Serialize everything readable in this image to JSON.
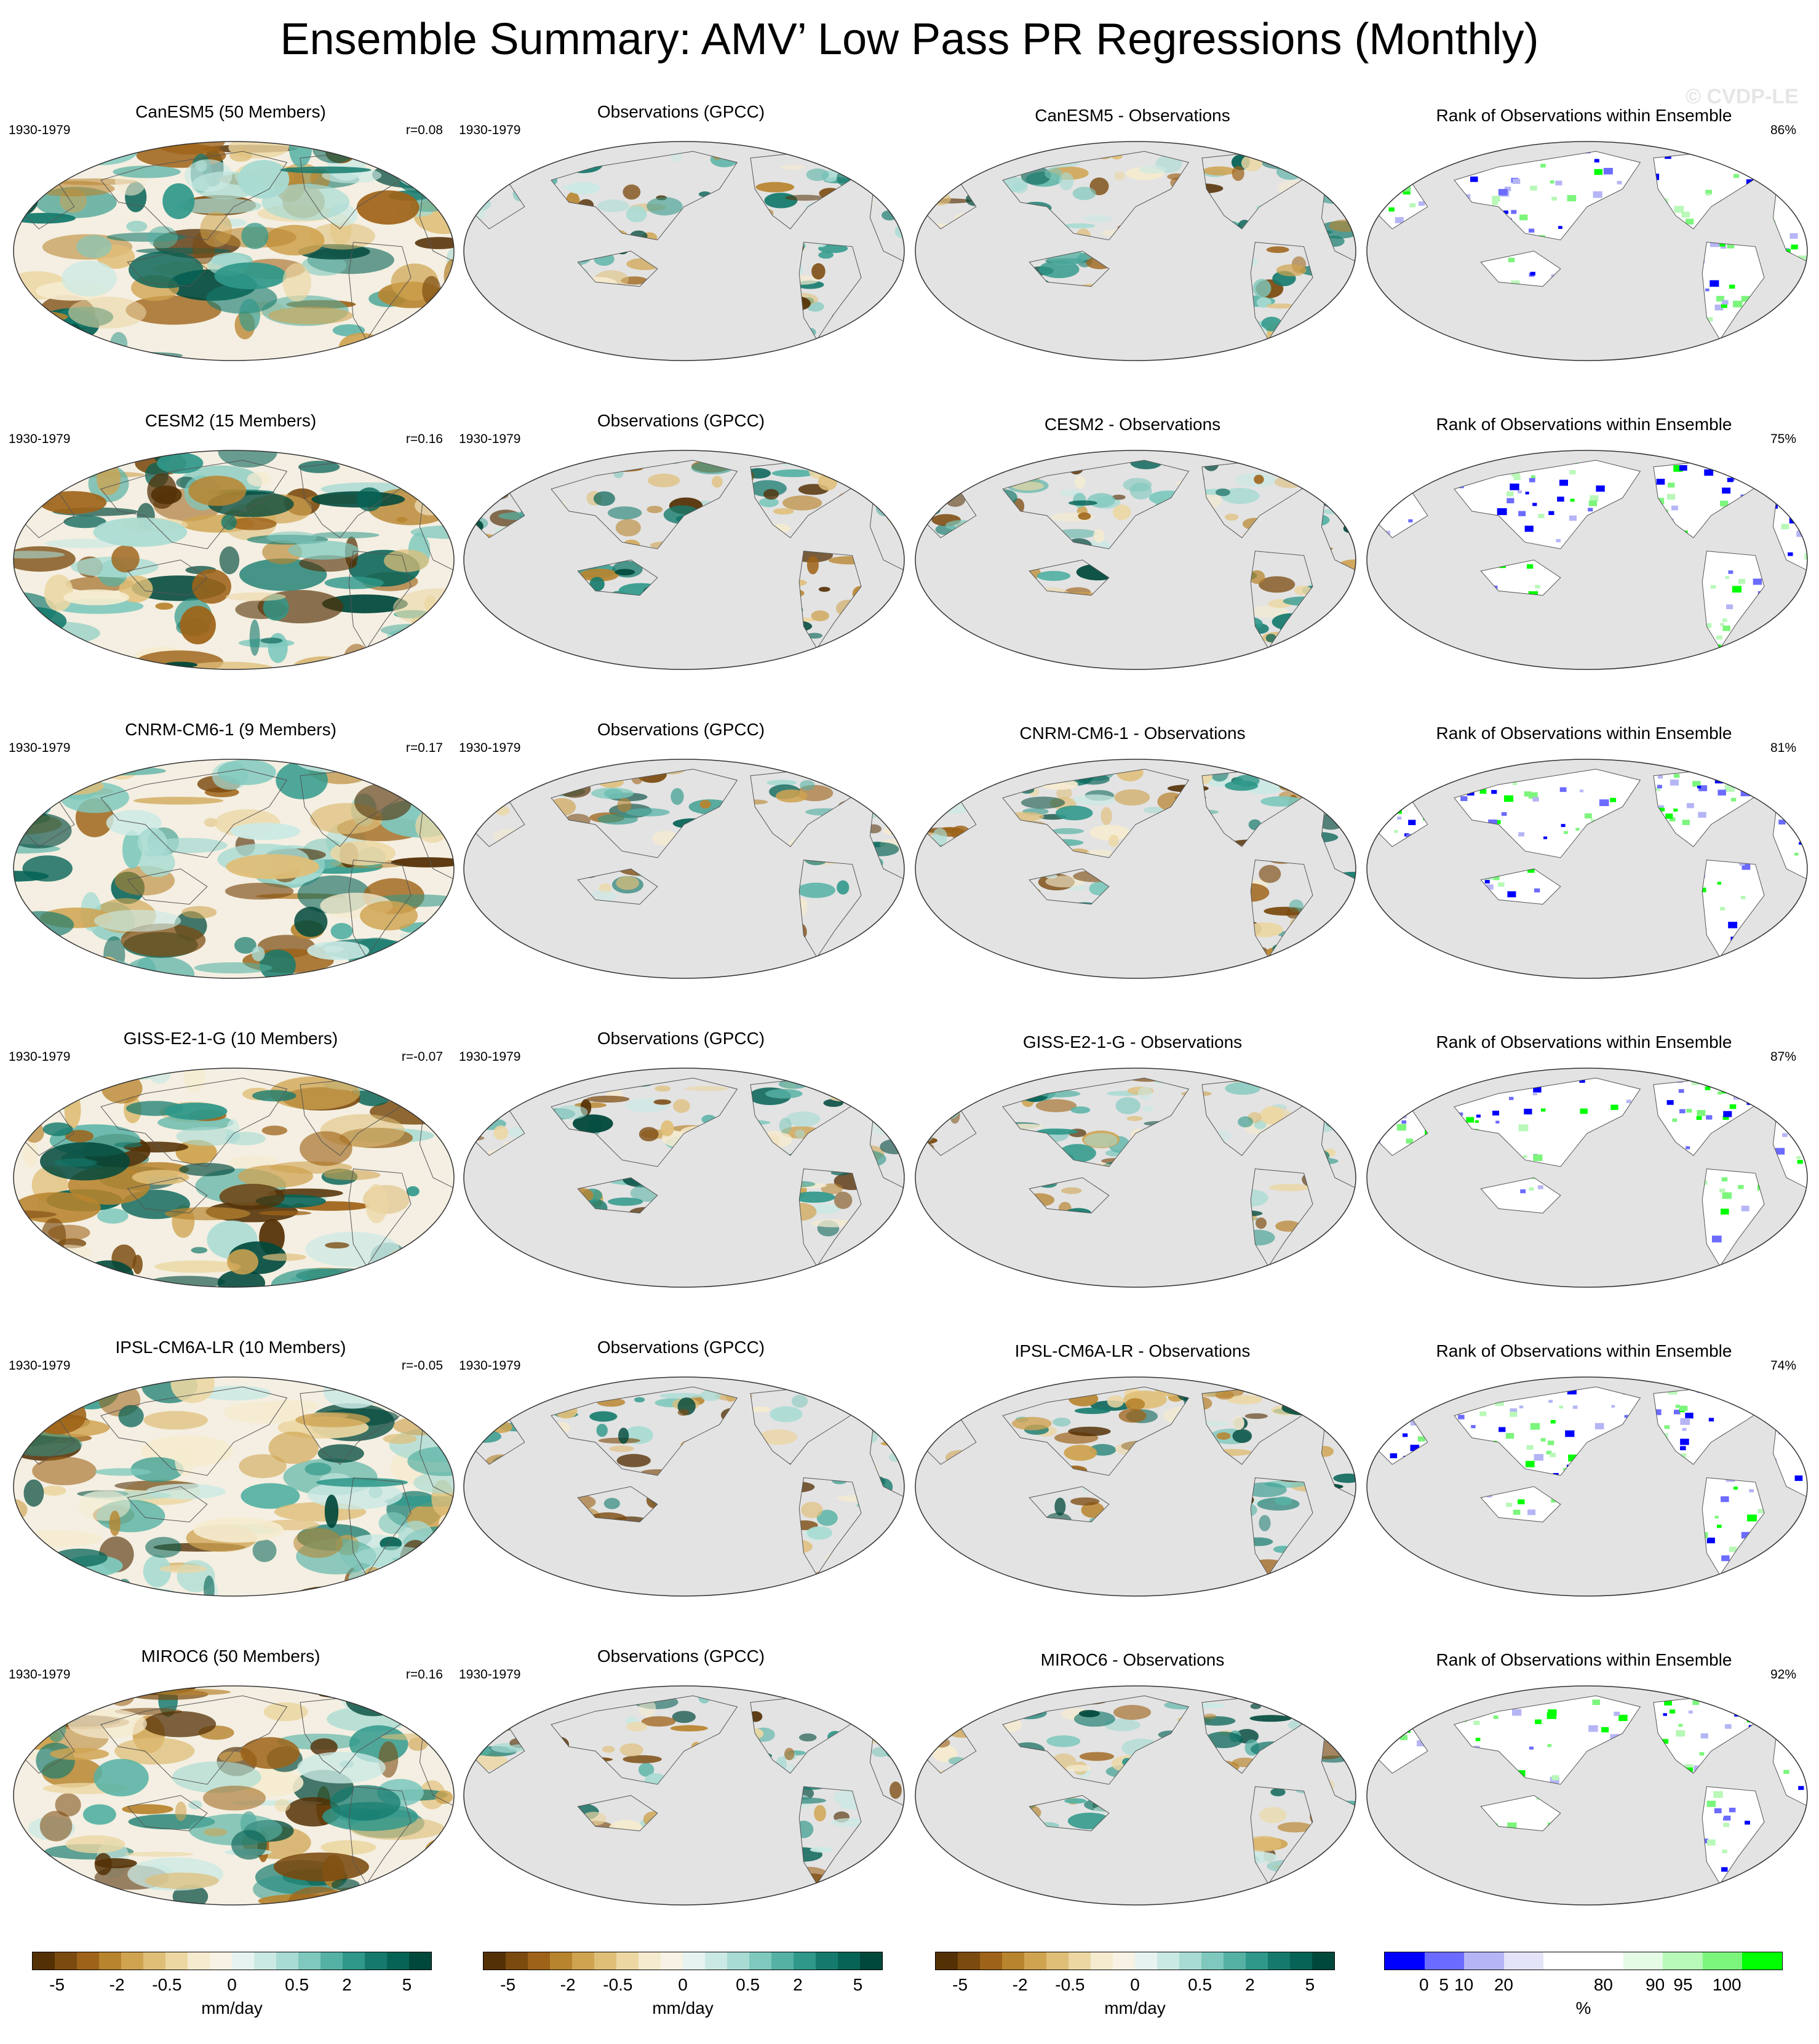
{
  "title": "Ensemble Summary: AMV’ Low Pass PR Regressions (Monthly)",
  "watermark": "© CVDP-LE",
  "colors": {
    "ocean_gray": "#e3e3e3",
    "diverging": [
      "#543005",
      "#7b4a0f",
      "#9e6318",
      "#b8842e",
      "#cfa350",
      "#dfbe78",
      "#ecd7a3",
      "#f5ebcf",
      "#f7f2e3",
      "#e7f3f1",
      "#cbe9e4",
      "#a8dbd3",
      "#7ec8bd",
      "#55b1a4",
      "#2f988a",
      "#157a6d",
      "#066356",
      "#00483b"
    ],
    "rank": [
      "#0000ff",
      "#6b6bff",
      "#b5b5f5",
      "#e4e4f8",
      "#ffffff",
      "#ffffff",
      "#e6fbe6",
      "#b8f8b8",
      "#7cf57c",
      "#00ff00"
    ]
  },
  "rows": [
    {
      "model": "CanESM5 (50 Members)",
      "period": "1930-1979",
      "r": "r=0.08",
      "obs": "Observations (GPCC)",
      "diff": "CanESM5 - Observations",
      "rank": "Rank of Observations within Ensemble",
      "pct": "86%"
    },
    {
      "model": "CESM2 (15 Members)",
      "period": "1930-1979",
      "r": "r=0.16",
      "obs": "Observations (GPCC)",
      "diff": "CESM2 - Observations",
      "rank": "Rank of Observations within Ensemble",
      "pct": "75%"
    },
    {
      "model": "CNRM-CM6-1 (9 Members)",
      "period": "1930-1979",
      "r": "r=0.17",
      "obs": "Observations (GPCC)",
      "diff": "CNRM-CM6-1 - Observations",
      "rank": "Rank of Observations within Ensemble",
      "pct": "81%"
    },
    {
      "model": "GISS-E2-1-G (10 Members)",
      "period": "1930-1979",
      "r": "r=-0.07",
      "obs": "Observations (GPCC)",
      "diff": "GISS-E2-1-G - Observations",
      "rank": "Rank of Observations within Ensemble",
      "pct": "87%"
    },
    {
      "model": "IPSL-CM6A-LR (10 Members)",
      "period": "1930-1979",
      "r": "r=-0.05",
      "obs": "Observations (GPCC)",
      "diff": "IPSL-CM6A-LR - Observations",
      "rank": "Rank of Observations within Ensemble",
      "pct": "74%"
    },
    {
      "model": "MIROC6 (50 Members)",
      "period": "1930-1979",
      "r": "r=0.16",
      "obs": "Observations (GPCC)",
      "diff": "MIROC6 - Observations",
      "rank": "Rank of Observations within Ensemble",
      "pct": "92%"
    }
  ],
  "colorbars": {
    "pr_ticks": [
      "-5",
      "-2",
      "-0.5",
      "0",
      "0.5",
      "2",
      "5"
    ],
    "pr_unit": "mm/day",
    "rank_ticks": [
      "0",
      "5",
      "10",
      "20",
      "80",
      "90",
      "95",
      "100"
    ],
    "rank_unit": "%"
  }
}
